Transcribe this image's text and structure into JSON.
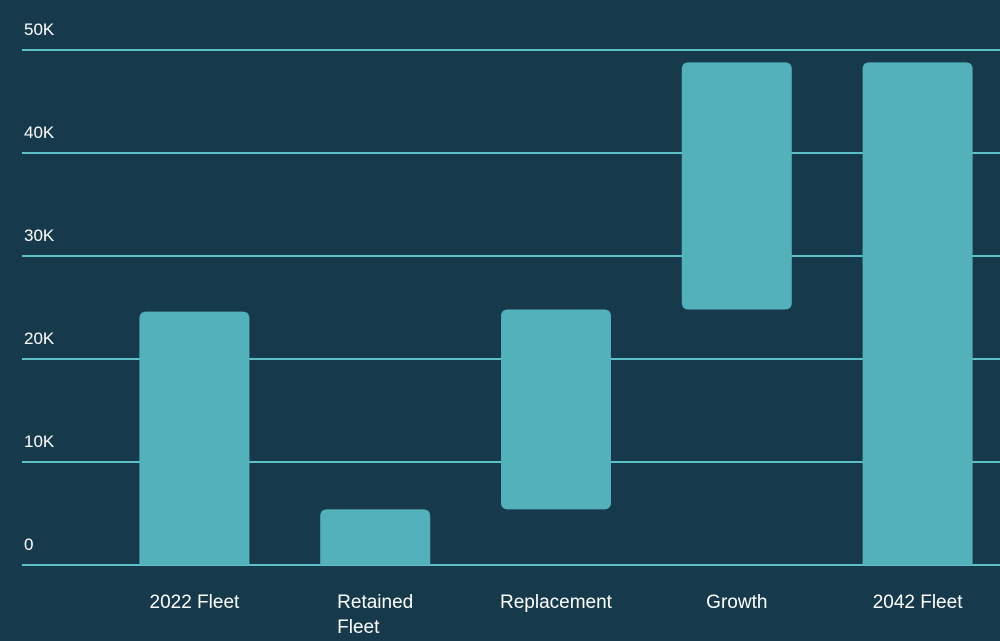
{
  "colors": {
    "background": "#163a4c",
    "bar": "#52b1bb",
    "gridline": "#5cc0c8",
    "text": "#ffffff"
  },
  "chart_data": {
    "type": "bar",
    "variant": "waterfall",
    "title": "",
    "xlabel": "",
    "ylabel": "",
    "ylim": [
      0,
      50000
    ],
    "yticks": [
      {
        "value": 0,
        "label": "0"
      },
      {
        "value": 10000,
        "label": "10K"
      },
      {
        "value": 20000,
        "label": "20K"
      },
      {
        "value": 30000,
        "label": "30K"
      },
      {
        "value": 40000,
        "label": "40K"
      },
      {
        "value": 50000,
        "label": "50K"
      }
    ],
    "grid": true,
    "legend": "none",
    "categories": [
      "2022 Fleet",
      "Retained Fleet",
      "Replacement",
      "Growth",
      "2042 Fleet"
    ],
    "bars": [
      {
        "category": "2022 Fleet",
        "start": 0,
        "end": 24600
      },
      {
        "category": "Retained Fleet",
        "start": 0,
        "end": 5400
      },
      {
        "category": "Replacement",
        "start": 5400,
        "end": 24800
      },
      {
        "category": "Growth",
        "start": 24800,
        "end": 48800
      },
      {
        "category": "2042 Fleet",
        "start": 0,
        "end": 48800
      }
    ]
  }
}
